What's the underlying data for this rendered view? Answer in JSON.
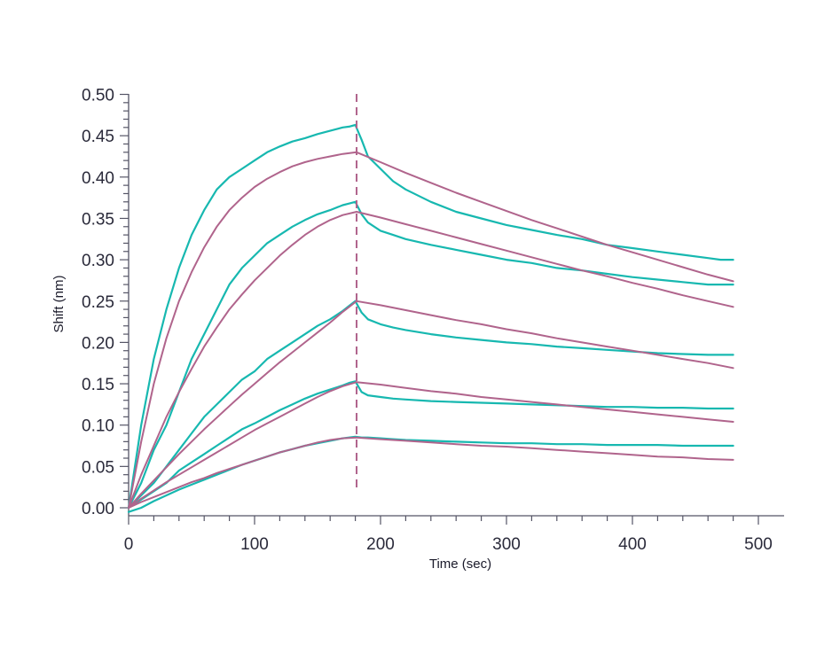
{
  "chart_data": {
    "type": "line",
    "title": "",
    "xlabel": "Time (sec)",
    "ylabel": "Shift (nm)",
    "xlim": [
      0,
      520
    ],
    "ylim": [
      -0.01,
      0.5
    ],
    "xticks": [
      0,
      100,
      200,
      300,
      400,
      500
    ],
    "xtick_labels": [
      "0",
      "100",
      "200",
      "300",
      "400",
      "500"
    ],
    "yticks": [
      0.0,
      0.05,
      0.1,
      0.15,
      0.2,
      0.25,
      0.3,
      0.35,
      0.4,
      0.45,
      0.5
    ],
    "ytick_labels": [
      "0.00",
      "0.05",
      "0.10",
      "0.15",
      "0.20",
      "0.25",
      "0.30",
      "0.35",
      "0.40",
      "0.45",
      "0.50"
    ],
    "grid": false,
    "legend": "none",
    "vline": {
      "x": 181,
      "style": "dashed",
      "color": "#b0648c"
    },
    "colors": {
      "measured": "#17b8b0",
      "fit": "#b0648c",
      "axis": "#555566"
    },
    "series": [
      {
        "x": [
          0,
          10,
          20,
          30,
          40,
          50,
          60,
          70,
          80,
          90,
          100,
          110,
          120,
          130,
          140,
          150,
          160,
          170,
          175,
          180,
          185,
          190,
          200,
          210,
          220,
          240,
          260,
          280,
          300,
          320,
          340,
          360,
          380,
          400,
          420,
          440,
          460,
          470,
          480
        ],
        "values": [
          0.0,
          0.1,
          0.18,
          0.24,
          0.29,
          0.33,
          0.36,
          0.385,
          0.4,
          0.41,
          0.42,
          0.43,
          0.437,
          0.443,
          0.447,
          0.452,
          0.456,
          0.46,
          0.461,
          0.463,
          0.445,
          0.425,
          0.41,
          0.395,
          0.385,
          0.37,
          0.358,
          0.35,
          0.342,
          0.336,
          0.33,
          0.325,
          0.318,
          0.314,
          0.31,
          0.306,
          0.302,
          0.3,
          0.3
        ]
      },
      {
        "x": [
          0,
          10,
          20,
          30,
          40,
          50,
          60,
          70,
          80,
          90,
          100,
          110,
          120,
          130,
          140,
          150,
          160,
          170,
          175,
          180,
          185,
          190,
          200,
          210,
          220,
          240,
          260,
          280,
          300,
          320,
          340,
          360,
          380,
          400,
          420,
          440,
          460,
          470,
          480
        ],
        "values": [
          0.0,
          0.03,
          0.07,
          0.1,
          0.14,
          0.18,
          0.21,
          0.24,
          0.27,
          0.29,
          0.305,
          0.32,
          0.33,
          0.34,
          0.348,
          0.355,
          0.36,
          0.366,
          0.368,
          0.37,
          0.355,
          0.345,
          0.335,
          0.33,
          0.325,
          0.318,
          0.312,
          0.306,
          0.3,
          0.296,
          0.29,
          0.287,
          0.283,
          0.279,
          0.276,
          0.273,
          0.27,
          0.27,
          0.27
        ]
      },
      {
        "x": [
          0,
          10,
          20,
          30,
          40,
          50,
          60,
          70,
          80,
          90,
          100,
          110,
          120,
          130,
          140,
          150,
          160,
          170,
          175,
          180,
          185,
          190,
          200,
          210,
          220,
          240,
          260,
          280,
          300,
          320,
          340,
          360,
          380,
          400,
          420,
          440,
          460,
          470,
          480
        ],
        "values": [
          0.0,
          0.015,
          0.03,
          0.05,
          0.07,
          0.09,
          0.11,
          0.125,
          0.14,
          0.155,
          0.165,
          0.18,
          0.19,
          0.2,
          0.21,
          0.22,
          0.228,
          0.238,
          0.244,
          0.25,
          0.236,
          0.228,
          0.222,
          0.218,
          0.215,
          0.21,
          0.206,
          0.203,
          0.2,
          0.198,
          0.195,
          0.193,
          0.191,
          0.189,
          0.187,
          0.186,
          0.185,
          0.185,
          0.185
        ]
      },
      {
        "x": [
          0,
          10,
          20,
          30,
          40,
          50,
          60,
          70,
          80,
          90,
          100,
          110,
          120,
          130,
          140,
          150,
          160,
          170,
          175,
          180,
          185,
          190,
          200,
          210,
          220,
          240,
          260,
          280,
          300,
          320,
          340,
          360,
          380,
          400,
          420,
          440,
          460,
          470,
          480
        ],
        "values": [
          0.0,
          0.01,
          0.02,
          0.03,
          0.045,
          0.055,
          0.065,
          0.075,
          0.085,
          0.095,
          0.102,
          0.11,
          0.118,
          0.125,
          0.132,
          0.138,
          0.143,
          0.148,
          0.151,
          0.153,
          0.14,
          0.136,
          0.134,
          0.132,
          0.131,
          0.129,
          0.128,
          0.127,
          0.126,
          0.125,
          0.124,
          0.123,
          0.122,
          0.122,
          0.121,
          0.121,
          0.12,
          0.12,
          0.12
        ]
      },
      {
        "x": [
          0,
          10,
          20,
          30,
          40,
          50,
          60,
          70,
          80,
          90,
          100,
          110,
          120,
          130,
          140,
          150,
          160,
          170,
          175,
          180,
          185,
          190,
          200,
          210,
          220,
          240,
          260,
          280,
          300,
          320,
          340,
          360,
          380,
          400,
          420,
          440,
          460,
          470,
          480
        ],
        "values": [
          -0.005,
          0.0,
          0.008,
          0.015,
          0.022,
          0.028,
          0.034,
          0.04,
          0.046,
          0.052,
          0.057,
          0.062,
          0.067,
          0.071,
          0.075,
          0.078,
          0.081,
          0.084,
          0.085,
          0.086,
          0.085,
          0.085,
          0.084,
          0.083,
          0.082,
          0.081,
          0.08,
          0.079,
          0.078,
          0.078,
          0.077,
          0.077,
          0.076,
          0.076,
          0.076,
          0.075,
          0.075,
          0.075,
          0.075
        ]
      },
      {
        "x": [
          0,
          10,
          20,
          30,
          40,
          50,
          60,
          70,
          80,
          90,
          100,
          110,
          120,
          130,
          140,
          150,
          160,
          170,
          181,
          200,
          220,
          240,
          260,
          280,
          300,
          320,
          340,
          360,
          380,
          400,
          420,
          440,
          460,
          480
        ],
        "values": [
          0.0,
          0.08,
          0.15,
          0.205,
          0.25,
          0.285,
          0.315,
          0.34,
          0.36,
          0.375,
          0.388,
          0.398,
          0.406,
          0.413,
          0.418,
          0.422,
          0.425,
          0.428,
          0.43,
          0.418,
          0.405,
          0.393,
          0.381,
          0.37,
          0.359,
          0.348,
          0.338,
          0.328,
          0.318,
          0.309,
          0.3,
          0.291,
          0.282,
          0.274
        ]
      },
      {
        "x": [
          0,
          10,
          20,
          30,
          40,
          50,
          60,
          70,
          80,
          90,
          100,
          110,
          120,
          130,
          140,
          150,
          160,
          170,
          181,
          200,
          220,
          240,
          260,
          280,
          300,
          320,
          340,
          360,
          380,
          400,
          420,
          440,
          460,
          480
        ],
        "values": [
          0.0,
          0.04,
          0.075,
          0.11,
          0.14,
          0.168,
          0.195,
          0.218,
          0.24,
          0.258,
          0.275,
          0.29,
          0.305,
          0.318,
          0.33,
          0.34,
          0.348,
          0.354,
          0.358,
          0.351,
          0.343,
          0.335,
          0.327,
          0.319,
          0.311,
          0.303,
          0.295,
          0.287,
          0.28,
          0.272,
          0.265,
          0.257,
          0.25,
          0.243
        ]
      },
      {
        "x": [
          0,
          10,
          20,
          30,
          40,
          50,
          60,
          70,
          80,
          90,
          100,
          110,
          120,
          130,
          140,
          150,
          160,
          170,
          181,
          200,
          220,
          240,
          260,
          280,
          300,
          320,
          340,
          360,
          380,
          400,
          420,
          440,
          460,
          480
        ],
        "values": [
          0.0,
          0.017,
          0.033,
          0.049,
          0.065,
          0.08,
          0.095,
          0.109,
          0.123,
          0.137,
          0.15,
          0.163,
          0.176,
          0.188,
          0.2,
          0.212,
          0.224,
          0.237,
          0.25,
          0.245,
          0.239,
          0.233,
          0.227,
          0.222,
          0.216,
          0.211,
          0.205,
          0.2,
          0.195,
          0.19,
          0.185,
          0.18,
          0.175,
          0.169
        ]
      },
      {
        "x": [
          0,
          10,
          20,
          30,
          40,
          50,
          60,
          70,
          80,
          90,
          100,
          110,
          120,
          130,
          140,
          150,
          160,
          170,
          181,
          200,
          220,
          240,
          260,
          280,
          300,
          320,
          340,
          360,
          380,
          400,
          420,
          440,
          460,
          480
        ],
        "values": [
          0.0,
          0.011,
          0.021,
          0.031,
          0.04,
          0.049,
          0.058,
          0.067,
          0.076,
          0.085,
          0.094,
          0.102,
          0.11,
          0.118,
          0.126,
          0.134,
          0.141,
          0.147,
          0.152,
          0.149,
          0.145,
          0.141,
          0.138,
          0.134,
          0.131,
          0.128,
          0.125,
          0.122,
          0.119,
          0.116,
          0.113,
          0.11,
          0.107,
          0.104
        ]
      },
      {
        "x": [
          0,
          10,
          20,
          30,
          40,
          50,
          60,
          70,
          80,
          90,
          100,
          110,
          120,
          130,
          140,
          150,
          160,
          170,
          181,
          200,
          220,
          240,
          260,
          280,
          300,
          320,
          340,
          360,
          380,
          400,
          420,
          440,
          460,
          480
        ],
        "values": [
          0.0,
          0.007,
          0.013,
          0.019,
          0.025,
          0.031,
          0.036,
          0.042,
          0.047,
          0.052,
          0.057,
          0.062,
          0.067,
          0.071,
          0.075,
          0.079,
          0.082,
          0.084,
          0.085,
          0.083,
          0.081,
          0.079,
          0.077,
          0.075,
          0.074,
          0.072,
          0.07,
          0.068,
          0.066,
          0.064,
          0.062,
          0.061,
          0.059,
          0.058
        ]
      }
    ]
  }
}
